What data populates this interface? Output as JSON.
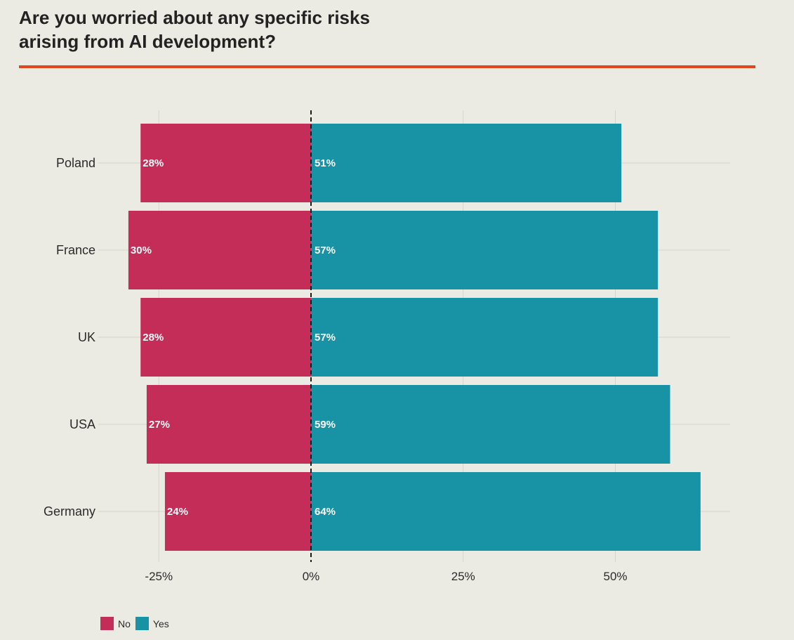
{
  "title": "Are you worried about any specific risks arising from AI development?",
  "colors": {
    "no": "#c32d57",
    "yes": "#1893a5",
    "accent": "#e2461c"
  },
  "chart_data": {
    "type": "bar",
    "orientation": "horizontal-diverging",
    "categories": [
      "Poland",
      "France",
      "UK",
      "USA",
      "Germany"
    ],
    "series": [
      {
        "name": "No",
        "values": [
          28,
          30,
          28,
          27,
          24
        ],
        "labels": [
          "28%",
          "30%",
          "28%",
          "27%",
          "24%"
        ]
      },
      {
        "name": "Yes",
        "values": [
          51,
          57,
          57,
          59,
          64
        ],
        "labels": [
          "51%",
          "57%",
          "57%",
          "59%",
          "64%"
        ]
      }
    ],
    "xticks": [
      -25,
      0,
      25,
      50
    ],
    "xtick_labels": [
      "-25%",
      "0%",
      "25%",
      "50%"
    ],
    "xlim": [
      -35,
      69
    ],
    "legend": {
      "position": "bottom-left",
      "entries": [
        "No",
        "Yes"
      ]
    }
  }
}
